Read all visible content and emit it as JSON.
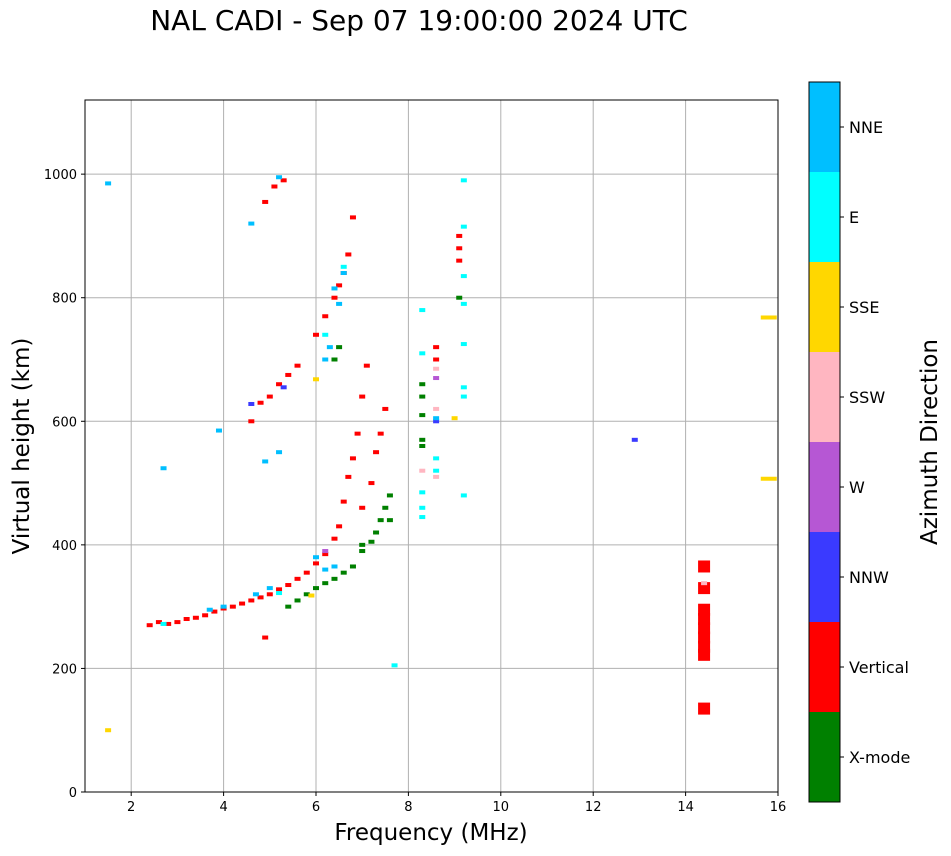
{
  "chart_data": {
    "type": "scatter",
    "title": "NAL CADI - Sep 07 19:00:00 2024 UTC",
    "xlabel": "Frequency (MHz)",
    "ylabel": "Virtual height (km)",
    "xlim": [
      1,
      16
    ],
    "ylim": [
      0,
      1120
    ],
    "xticks": [
      2,
      4,
      6,
      8,
      10,
      12,
      14,
      16
    ],
    "yticks": [
      0,
      200,
      400,
      600,
      800,
      1000
    ],
    "grid": true,
    "colorbar": {
      "title": "Azimuth Direction",
      "categories": [
        {
          "name": "X-mode",
          "color": "#008000"
        },
        {
          "name": "Vertical",
          "color": "#ff0000"
        },
        {
          "name": "NNW",
          "color": "#3a3aff"
        },
        {
          "name": "W",
          "color": "#b657d4"
        },
        {
          "name": "SSW",
          "color": "#ffb6c1"
        },
        {
          "name": "SSE",
          "color": "#ffd700"
        },
        {
          "name": "E",
          "color": "#00ffff"
        },
        {
          "name": "NNE",
          "color": "#00bfff"
        }
      ]
    },
    "series": [
      {
        "name": "Vertical",
        "points": [
          [
            2.4,
            270
          ],
          [
            2.6,
            275
          ],
          [
            2.8,
            272
          ],
          [
            3.0,
            275
          ],
          [
            3.2,
            280
          ],
          [
            3.4,
            282
          ],
          [
            3.6,
            286
          ],
          [
            3.8,
            292
          ],
          [
            4.0,
            297
          ],
          [
            4.2,
            300
          ],
          [
            4.4,
            305
          ],
          [
            4.6,
            310
          ],
          [
            4.8,
            315
          ],
          [
            5.0,
            320
          ],
          [
            5.2,
            328
          ],
          [
            5.4,
            335
          ],
          [
            5.6,
            345
          ],
          [
            5.8,
            355
          ],
          [
            6.0,
            370
          ],
          [
            6.2,
            385
          ],
          [
            6.4,
            410
          ],
          [
            6.5,
            430
          ],
          [
            6.6,
            470
          ],
          [
            6.7,
            510
          ],
          [
            6.8,
            540
          ],
          [
            6.9,
            580
          ],
          [
            4.6,
            600
          ],
          [
            4.8,
            630
          ],
          [
            5.0,
            640
          ],
          [
            5.2,
            660
          ],
          [
            5.4,
            675
          ],
          [
            5.6,
            690
          ],
          [
            6.0,
            740
          ],
          [
            6.2,
            770
          ],
          [
            6.4,
            800
          ],
          [
            6.5,
            820
          ],
          [
            6.6,
            840
          ],
          [
            6.7,
            870
          ],
          [
            6.8,
            930
          ],
          [
            4.9,
            955
          ],
          [
            5.1,
            980
          ],
          [
            5.3,
            990
          ],
          [
            7.0,
            460
          ],
          [
            7.2,
            500
          ],
          [
            7.3,
            550
          ],
          [
            7.4,
            580
          ],
          [
            7.5,
            620
          ],
          [
            7.0,
            640
          ],
          [
            8.6,
            700
          ],
          [
            8.6,
            720
          ],
          [
            9.1,
            860
          ],
          [
            9.1,
            880
          ],
          [
            9.1,
            900
          ],
          [
            4.9,
            250
          ],
          [
            7.1,
            690
          ],
          [
            14.4,
            365
          ],
          [
            14.4,
            330
          ],
          [
            14.4,
            295
          ],
          [
            14.4,
            280
          ],
          [
            14.4,
            265
          ],
          [
            14.4,
            250
          ],
          [
            14.4,
            235
          ],
          [
            14.4,
            222
          ],
          [
            14.4,
            135
          ]
        ]
      },
      {
        "name": "X-mode",
        "points": [
          [
            5.4,
            300
          ],
          [
            5.6,
            310
          ],
          [
            5.8,
            320
          ],
          [
            6.0,
            330
          ],
          [
            6.2,
            338
          ],
          [
            6.4,
            345
          ],
          [
            6.6,
            355
          ],
          [
            6.8,
            365
          ],
          [
            7.0,
            390
          ],
          [
            7.2,
            405
          ],
          [
            7.3,
            420
          ],
          [
            7.4,
            440
          ],
          [
            7.5,
            460
          ],
          [
            7.6,
            480
          ],
          [
            6.5,
            720
          ],
          [
            6.4,
            700
          ],
          [
            8.3,
            660
          ],
          [
            8.3,
            640
          ],
          [
            8.3,
            610
          ],
          [
            8.3,
            570
          ],
          [
            8.3,
            560
          ],
          [
            9.1,
            800
          ],
          [
            7.0,
            400
          ],
          [
            7.6,
            440
          ]
        ]
      },
      {
        "name": "NNW",
        "points": [
          [
            12.9,
            570
          ],
          [
            4.6,
            628
          ],
          [
            5.3,
            655
          ],
          [
            8.6,
            600
          ]
        ]
      },
      {
        "name": "W",
        "points": [
          [
            8.6,
            670
          ],
          [
            6.2,
            390
          ]
        ]
      },
      {
        "name": "SSW",
        "points": [
          [
            8.3,
            520
          ],
          [
            8.6,
            510
          ],
          [
            8.6,
            685
          ],
          [
            8.6,
            620
          ],
          [
            14.4,
            338
          ]
        ]
      },
      {
        "name": "SSE",
        "points": [
          [
            15.8,
            768
          ],
          [
            15.8,
            507
          ],
          [
            1.5,
            100
          ],
          [
            9.0,
            605
          ],
          [
            5.9,
            318
          ],
          [
            6.0,
            668
          ]
        ]
      },
      {
        "name": "E",
        "points": [
          [
            9.2,
            990
          ],
          [
            9.2,
            915
          ],
          [
            9.2,
            835
          ],
          [
            9.2,
            790
          ],
          [
            9.2,
            725
          ],
          [
            9.2,
            655
          ],
          [
            9.2,
            640
          ],
          [
            9.2,
            480
          ],
          [
            8.6,
            540
          ],
          [
            8.6,
            520
          ],
          [
            8.3,
            710
          ],
          [
            8.3,
            780
          ],
          [
            8.3,
            485
          ],
          [
            8.3,
            460
          ],
          [
            8.3,
            445
          ],
          [
            7.7,
            205
          ],
          [
            6.2,
            740
          ],
          [
            6.6,
            850
          ],
          [
            2.7,
            272
          ],
          [
            5.2,
            322
          ]
        ]
      },
      {
        "name": "NNE",
        "points": [
          [
            1.5,
            985
          ],
          [
            4.6,
            920
          ],
          [
            5.2,
            995
          ],
          [
            3.9,
            585
          ],
          [
            4.9,
            535
          ],
          [
            5.2,
            550
          ],
          [
            2.7,
            524
          ],
          [
            6.4,
            815
          ],
          [
            6.5,
            790
          ],
          [
            6.6,
            840
          ],
          [
            6.2,
            700
          ],
          [
            6.3,
            720
          ],
          [
            6.0,
            380
          ],
          [
            6.2,
            360
          ],
          [
            6.4,
            365
          ],
          [
            4.0,
            300
          ],
          [
            4.7,
            320
          ],
          [
            5.0,
            330
          ],
          [
            3.7,
            295
          ],
          [
            8.6,
            605
          ]
        ]
      }
    ]
  }
}
